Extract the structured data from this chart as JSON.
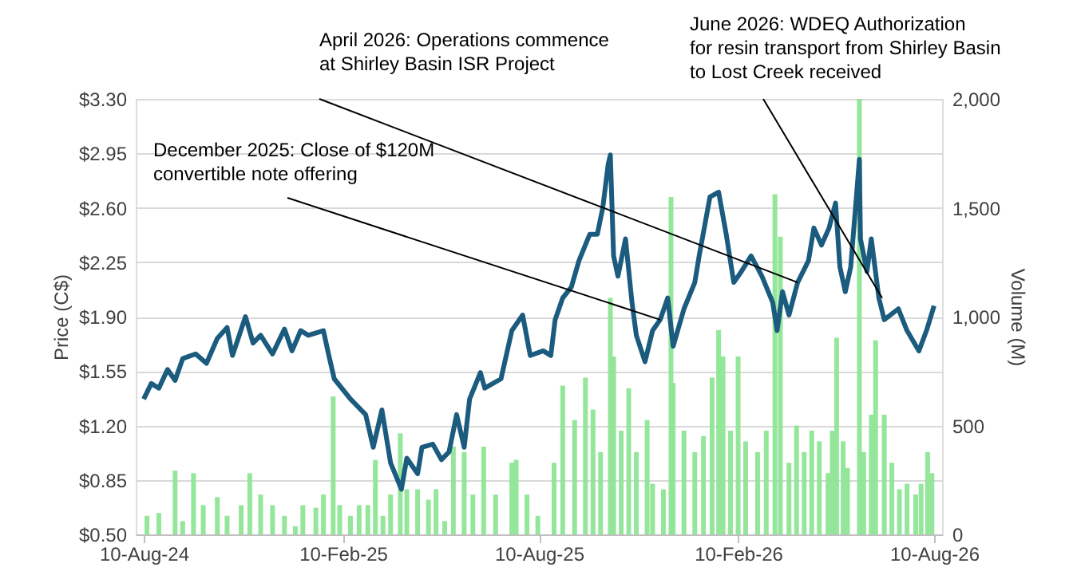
{
  "chart_data": {
    "type": "line",
    "ylabel": "Price (C$)",
    "y2label": "Volume (M)",
    "x": [
      "2024-08-10",
      "2024-08-17",
      "2024-08-24",
      "2024-09-01",
      "2024-09-08",
      "2024-09-15",
      "2024-09-27",
      "2024-10-07",
      "2024-10-17",
      "2024-10-26",
      "2024-10-31",
      "2024-11-12",
      "2024-11-19",
      "2024-11-26",
      "2024-12-07",
      "2024-12-18",
      "2024-12-25",
      "2025-01-02",
      "2025-01-09",
      "2025-01-23",
      "2025-01-28",
      "2025-02-02",
      "2025-02-17",
      "2025-03-03",
      "2025-03-10",
      "2025-03-18",
      "2025-03-26",
      "2025-04-05",
      "2025-04-10",
      "2025-04-20",
      "2025-04-24",
      "2025-05-04",
      "2025-05-12",
      "2025-05-19",
      "2025-05-26",
      "2025-06-02",
      "2025-06-07",
      "2025-06-17",
      "2025-06-21",
      "2025-07-06",
      "2025-07-16",
      "2025-07-26",
      "2025-08-02",
      "2025-08-14",
      "2025-08-21",
      "2025-08-25",
      "2025-09-01",
      "2025-09-09",
      "2025-09-16",
      "2025-09-26",
      "2025-10-03",
      "2025-10-08",
      "2025-10-13",
      "2025-10-15",
      "2025-10-18",
      "2025-10-22",
      "2025-10-29",
      "2025-11-04",
      "2025-11-08",
      "2025-11-16",
      "2025-11-23",
      "2025-11-30",
      "2025-12-07",
      "2025-12-12",
      "2025-12-22",
      "2026-01-01",
      "2026-01-05",
      "2026-01-15",
      "2026-01-23",
      "2026-01-30",
      "2026-02-06",
      "2026-02-13",
      "2026-02-22",
      "2026-03-04",
      "2026-03-14",
      "2026-03-18",
      "2026-03-23",
      "2026-03-29",
      "2026-04-06",
      "2026-04-16",
      "2026-04-21",
      "2026-04-28",
      "2026-05-05",
      "2026-05-11",
      "2026-05-15",
      "2026-05-20",
      "2026-05-25",
      "2026-06-02",
      "2026-06-03",
      "2026-06-09",
      "2026-06-13",
      "2026-06-20",
      "2026-06-25",
      "2026-07-08",
      "2026-07-16",
      "2026-07-27",
      "2026-08-03",
      "2026-08-10"
    ],
    "series": [
      {
        "type": "bar",
        "axis": "y2",
        "color": "#8ee596",
        "x": [
          "2024-08-13",
          "2024-08-24",
          "2024-09-08",
          "2024-09-15",
          "2024-09-25",
          "2024-10-04",
          "2024-10-17",
          "2024-10-26",
          "2024-11-08",
          "2024-11-16",
          "2024-11-26",
          "2024-12-07",
          "2024-12-18",
          "2024-12-28",
          "2025-01-04",
          "2025-01-16",
          "2025-01-23",
          "2025-02-01",
          "2025-02-07",
          "2025-02-17",
          "2025-02-25",
          "2025-03-05",
          "2025-03-12",
          "2025-03-19",
          "2025-03-26",
          "2025-04-04",
          "2025-04-10",
          "2025-04-20",
          "2025-04-30",
          "2025-05-07",
          "2025-05-15",
          "2025-05-23",
          "2025-06-02",
          "2025-06-10",
          "2025-06-20",
          "2025-07-01",
          "2025-07-16",
          "2025-07-20",
          "2025-07-30",
          "2025-08-09",
          "2025-08-24",
          "2025-09-01",
          "2025-09-12",
          "2025-09-22",
          "2025-09-29",
          "2025-10-06",
          "2025-10-15",
          "2025-10-18",
          "2025-10-25",
          "2025-11-01",
          "2025-11-08",
          "2025-11-18",
          "2025-11-23",
          "2025-12-03",
          "2025-12-10",
          "2025-12-12",
          "2025-12-22",
          "2026-01-01",
          "2026-01-09",
          "2026-01-17",
          "2026-01-23",
          "2026-01-27",
          "2026-02-03",
          "2026-02-10",
          "2026-02-17",
          "2026-02-28",
          "2026-03-08",
          "2026-03-16",
          "2026-03-21",
          "2026-03-29",
          "2026-04-05",
          "2026-04-12",
          "2026-04-19",
          "2026-04-26",
          "2026-05-04",
          "2026-05-08",
          "2026-05-12",
          "2026-05-18",
          "2026-05-22",
          "2026-06-02",
          "2026-06-06",
          "2026-06-13",
          "2026-06-17",
          "2026-06-25",
          "2026-07-02",
          "2026-07-09",
          "2026-07-16",
          "2026-07-24",
          "2026-07-29",
          "2026-08-04",
          "2026-08-08"
        ],
        "values": [
          85,
          98,
          293,
          61,
          281,
          134,
          171,
          85,
          134,
          281,
          183,
          134,
          85,
          37,
          134,
          122,
          183,
          634,
          134,
          85,
          134,
          134,
          342,
          85,
          183,
          464,
          207,
          207,
          159,
          207,
          61,
          403,
          378,
          183,
          403,
          183,
          329,
          342,
          183,
          85,
          329,
          683,
          525,
          720,
          573,
          378,
          1086,
          817,
          476,
          671,
          378,
          525,
          232,
          207,
          1549,
          695,
          476,
          378,
          451,
          720,
          939,
          817,
          476,
          817,
          427,
          378,
          476,
          1562,
          1367,
          329,
          500,
          378,
          476,
          427,
          281,
          476,
          903,
          427,
          305,
          2000,
          378,
          549,
          891,
          549,
          329,
          207,
          232,
          183,
          232,
          378,
          281
        ]
      },
      {
        "axis": "y",
        "color": "#1b5b7e",
        "values": [
          1.37,
          1.47,
          1.44,
          1.56,
          1.49,
          1.63,
          1.66,
          1.6,
          1.76,
          1.83,
          1.65,
          1.9,
          1.73,
          1.78,
          1.66,
          1.82,
          1.68,
          1.81,
          1.78,
          1.81,
          1.65,
          1.5,
          1.37,
          1.27,
          1.06,
          1.3,
          0.96,
          0.79,
          0.99,
          0.89,
          1.06,
          1.08,
          0.98,
          1.03,
          1.27,
          1.06,
          1.37,
          1.54,
          1.44,
          1.5,
          1.81,
          1.91,
          1.65,
          1.68,
          1.65,
          1.88,
          2.02,
          2.09,
          2.26,
          2.43,
          2.43,
          2.6,
          2.88,
          2.94,
          2.29,
          2.16,
          2.4,
          1.99,
          1.78,
          1.61,
          1.81,
          1.88,
          2.02,
          1.71,
          1.95,
          2.12,
          2.29,
          2.67,
          2.7,
          2.43,
          2.12,
          2.19,
          2.29,
          2.16,
          1.99,
          1.81,
          2.06,
          1.91,
          2.12,
          2.26,
          2.47,
          2.36,
          2.47,
          2.63,
          2.22,
          2.06,
          2.22,
          2.91,
          2.4,
          2.19,
          2.4,
          2.02,
          1.88,
          1.95,
          1.81,
          1.68,
          1.81,
          1.97
        ]
      }
    ],
    "ylim": [
      0.5,
      3.3
    ],
    "yticks": [
      {
        "value": 0.5,
        "label": "$0.50"
      },
      {
        "value": 0.85,
        "label": "$0.85"
      },
      {
        "value": 1.2,
        "label": "$1.20"
      },
      {
        "value": 1.55,
        "label": "$1.55"
      },
      {
        "value": 1.9,
        "label": "$1.90"
      },
      {
        "value": 2.25,
        "label": "$2.25"
      },
      {
        "value": 2.6,
        "label": "$2.60"
      },
      {
        "value": 2.95,
        "label": "$2.95"
      },
      {
        "value": 3.3,
        "label": "$3.30"
      }
    ],
    "y2lim": [
      0,
      2000
    ],
    "y2ticks": [
      {
        "value": 0,
        "label": "0"
      },
      {
        "value": 500,
        "label": "500"
      },
      {
        "value": 1000,
        "label": "1,000"
      },
      {
        "value": 1500,
        "label": "1,500"
      },
      {
        "value": 2000,
        "label": "2,000"
      }
    ],
    "xlim": [
      "2024-08-10",
      "2026-08-10"
    ],
    "xticks": [
      {
        "value": "2024-08-10",
        "label": "10-Aug-24"
      },
      {
        "value": "2025-02-10",
        "label": "10-Feb-25"
      },
      {
        "value": "2025-08-10",
        "label": "10-Aug-25"
      },
      {
        "value": "2026-02-10",
        "label": "10-Feb-26"
      },
      {
        "value": "2026-08-10",
        "label": "10-Aug-26"
      }
    ],
    "grid": "y",
    "marker": "none",
    "line_style": "solid",
    "annotations": [
      {
        "text": "December 2025: Close of $120M\nconvertible note offering",
        "x": "2025-11-30",
        "y": 1.88
      },
      {
        "text": "April 2026: Operations commence\nat Shirley Basin ISR Project",
        "x": "2026-04-06",
        "y": 2.12
      },
      {
        "text": "June 2026: WDEQ Authorization\nfor resin transport from Shirley Basin\nto Lost Creek received",
        "x": "2026-06-23",
        "y": 2.02
      }
    ]
  }
}
